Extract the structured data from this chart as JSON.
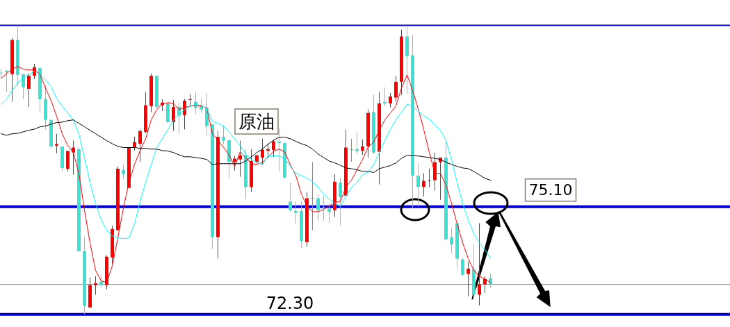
{
  "chart_data": {
    "type": "candlestick",
    "categories": [
      null,
      null,
      null,
      null,
      null,
      null,
      null,
      null,
      null,
      null,
      null,
      null,
      null,
      null,
      null,
      null,
      null,
      null,
      null,
      null,
      null,
      null,
      null,
      null,
      null,
      null,
      null,
      null,
      null,
      null,
      null,
      null,
      null,
      null,
      null,
      null,
      null,
      null,
      null,
      null,
      null,
      null,
      null,
      null,
      null,
      null,
      null,
      null,
      null,
      null,
      null,
      null,
      null,
      null,
      null,
      null,
      null,
      null,
      null,
      null,
      null,
      null,
      null,
      null,
      null,
      null,
      null,
      null,
      null,
      null,
      null,
      null,
      null,
      null,
      null,
      null,
      null,
      null,
      null,
      null,
      null,
      null,
      null,
      null,
      null,
      null,
      null,
      null,
      null
    ],
    "ylim": [
      71.97,
      80.48
    ],
    "ohlc": [
      [
        78.59,
        78.69,
        78.44,
        78.57
      ],
      [
        78.64,
        78.66,
        78.08,
        78.6
      ],
      [
        78.55,
        79.49,
        77.83,
        79.44
      ],
      [
        79.44,
        79.82,
        78.23,
        78.53
      ],
      [
        78.55,
        78.55,
        77.9,
        78.21
      ],
      [
        78.17,
        78.57,
        77.7,
        78.51
      ],
      [
        78.51,
        78.82,
        78.42,
        78.73
      ],
      [
        78.71,
        78.73,
        77.54,
        77.9
      ],
      [
        77.9,
        78.26,
        77.11,
        77.36
      ],
      [
        77.36,
        77.36,
        76.64,
        76.67
      ],
      [
        76.69,
        77.0,
        76.49,
        76.73
      ],
      [
        76.67,
        76.67,
        76.02,
        76.11
      ],
      [
        76.09,
        76.56,
        76.02,
        76.55
      ],
      [
        76.51,
        76.82,
        75.93,
        76.64
      ],
      [
        76.6,
        76.65,
        73.93,
        73.94
      ],
      [
        73.94,
        74.31,
        72.3,
        72.52
      ],
      [
        72.48,
        73.26,
        72.48,
        73.06
      ],
      [
        73.06,
        73.29,
        72.81,
        73.11
      ],
      [
        73.15,
        73.31,
        73.02,
        73.06
      ],
      [
        73.06,
        73.84,
        72.95,
        73.8
      ],
      [
        73.78,
        74.61,
        73.62,
        74.52
      ],
      [
        74.49,
        76.15,
        74.47,
        76.09
      ],
      [
        76.06,
        76.2,
        75.82,
        75.95
      ],
      [
        75.59,
        76.64,
        75.59,
        76.64
      ],
      [
        76.64,
        76.92,
        76.56,
        76.78
      ],
      [
        76.74,
        77.11,
        76.27,
        77.07
      ],
      [
        77.05,
        78.08,
        77.01,
        77.74
      ],
      [
        77.72,
        78.57,
        77.56,
        78.51
      ],
      [
        78.51,
        78.51,
        77.65,
        77.7
      ],
      [
        77.74,
        77.9,
        77.59,
        77.81
      ],
      [
        77.79,
        77.81,
        77.27,
        77.3
      ],
      [
        77.3,
        77.88,
        77.07,
        77.7
      ],
      [
        77.7,
        77.81,
        76.98,
        77.47
      ],
      [
        77.48,
        77.9,
        77.11,
        77.86
      ],
      [
        77.88,
        78.03,
        77.7,
        77.9
      ],
      [
        77.83,
        78.08,
        77.52,
        77.68
      ],
      [
        77.72,
        77.9,
        77.54,
        77.63
      ],
      [
        77.68,
        78.06,
        76.94,
        77.2
      ],
      [
        77.25,
        77.25,
        74.0,
        74.31
      ],
      [
        74.31,
        77.07,
        73.75,
        76.92
      ],
      [
        76.92,
        77.2,
        76.74,
        76.82
      ],
      [
        76.83,
        76.83,
        75.84,
        76.27
      ],
      [
        76.27,
        76.42,
        76.04,
        76.35
      ],
      [
        76.33,
        76.82,
        75.88,
        76.44
      ],
      [
        76.44,
        76.6,
        75.3,
        75.61
      ],
      [
        75.61,
        76.6,
        75.48,
        76.29
      ],
      [
        76.27,
        76.44,
        76.22,
        76.44
      ],
      [
        76.38,
        76.87,
        76.2,
        76.58
      ],
      [
        76.56,
        76.74,
        76.38,
        76.6
      ],
      [
        76.58,
        76.83,
        76.4,
        76.8
      ],
      [
        76.8,
        77.14,
        76.02,
        76.76
      ],
      [
        76.76,
        76.76,
        75.82,
        75.86
      ],
      [
        75.23,
        75.73,
        74.97,
        75.01
      ],
      [
        74.99,
        75.24,
        74.67,
        74.94
      ],
      [
        74.99,
        75.24,
        74.02,
        74.21
      ],
      [
        74.18,
        75.48,
        74.05,
        75.32
      ],
      [
        75.33,
        76.26,
        74.49,
        75.33
      ],
      [
        75.32,
        75.43,
        74.74,
        75.01
      ],
      [
        75.08,
        75.37,
        74.74,
        75.05
      ],
      [
        75.05,
        75.19,
        74.67,
        74.97
      ],
      [
        75.01,
        75.95,
        74.83,
        75.75
      ],
      [
        75.73,
        75.86,
        74.61,
        75.35
      ],
      [
        75.39,
        77.11,
        75.37,
        76.64
      ],
      [
        76.6,
        76.87,
        76.27,
        76.6
      ],
      [
        76.6,
        77.05,
        76.47,
        76.55
      ],
      [
        76.56,
        76.85,
        76.45,
        76.67
      ],
      [
        76.67,
        77.63,
        76.38,
        77.54
      ],
      [
        77.56,
        78.01,
        76.47,
        76.51
      ],
      [
        76.53,
        78.08,
        75.68,
        77.79
      ],
      [
        77.83,
        78.21,
        77.72,
        77.79
      ],
      [
        77.79,
        78.06,
        77.68,
        77.97
      ],
      [
        77.94,
        78.51,
        77.83,
        78.35
      ],
      [
        78.35,
        79.71,
        78.01,
        79.53
      ],
      [
        79.53,
        79.78,
        78.03,
        79.02
      ],
      [
        79.04,
        79.58,
        75.05,
        75.91
      ],
      [
        75.91,
        76.24,
        75.1,
        75.62
      ],
      [
        75.62,
        75.97,
        75.37,
        75.77
      ],
      [
        75.79,
        76.09,
        75.61,
        75.8
      ],
      [
        75.79,
        76.51,
        75.52,
        76.26
      ],
      [
        76.26,
        76.38,
        75.28,
        76.38
      ],
      [
        76.38,
        76.82,
        74.25,
        74.25
      ],
      [
        74.31,
        74.56,
        73.89,
        74.12
      ],
      [
        74.67,
        74.67,
        73.49,
        73.75
      ],
      [
        73.73,
        73.76,
        73.29,
        73.33
      ],
      [
        73.35,
        73.67,
        72.77,
        73.49
      ],
      [
        73.47,
        74.12,
        72.77,
        72.81
      ],
      [
        72.81,
        74.67,
        72.53,
        73.08
      ],
      [
        73.08,
        73.29,
        72.86,
        73.22
      ],
      [
        73.24,
        73.37,
        72.99,
        73.08
      ]
    ],
    "colors": [
      "#40e0d0",
      "#40e0d0",
      "#ff0000",
      "#40e0d0",
      "#40e0d0",
      "#ff0000",
      "#ff0000",
      "#40e0d0",
      "#40e0d0",
      "#40e0d0",
      "#ff0000",
      "#40e0d0",
      "#ff0000",
      "#ff0000",
      "#40e0d0",
      "#40e0d0",
      "#ff0000",
      "#ff0000",
      "#40e0d0",
      "#ff0000",
      "#ff0000",
      "#ff0000",
      "#40e0d0",
      "#ff0000",
      "#ff0000",
      "#ff0000",
      "#ff0000",
      "#ff0000",
      "#40e0d0",
      "#ff0000",
      "#40e0d0",
      "#ff0000",
      "#40e0d0",
      "#ff0000",
      "#ff0000",
      "#40e0d0",
      "#40e0d0",
      "#40e0d0",
      "#40e0d0",
      "#ff0000",
      "#40e0d0",
      "#40e0d0",
      "#ff0000",
      "#ff0000",
      "#40e0d0",
      "#ff0000",
      "#ff0000",
      "#ff0000",
      "#ff0000",
      "#ff0000",
      "#40e0d0",
      "#40e0d0",
      "#40e0d0",
      "#40e0d0",
      "#40e0d0",
      "#ff0000",
      "#32cd32",
      "#40e0d0",
      "#40e0d0",
      "#40e0d0",
      "#ff0000",
      "#40e0d0",
      "#ff0000",
      "#32cd32",
      "#40e0d0",
      "#ff0000",
      "#ff0000",
      "#40e0d0",
      "#ff0000",
      "#40e0d0",
      "#ff0000",
      "#ff0000",
      "#ff0000",
      "#40e0d0",
      "#40e0d0",
      "#40e0d0",
      "#ff0000",
      "#ff0000",
      "#ff0000",
      "#ff0000",
      "#40e0d0",
      "#40e0d0",
      "#40e0d0",
      "#40e0d0",
      "#ff0000",
      "#40e0d0",
      "#ff0000",
      "#ff0000",
      "#40e0d0"
    ],
    "series": [
      {
        "type": "line",
        "color": "#ff0000",
        "values": [
          78.44,
          78.57,
          78.68,
          78.75,
          78.68,
          78.66,
          78.66,
          78.55,
          78.19,
          77.86,
          77.45,
          77.0,
          76.69,
          76.51,
          75.97,
          75.01,
          74.16,
          73.44,
          73.17,
          73.13,
          73.56,
          74.29,
          75.06,
          75.73,
          76.2,
          76.56,
          76.87,
          77.36,
          77.63,
          77.77,
          77.81,
          77.79,
          77.63,
          77.68,
          77.72,
          77.74,
          77.72,
          77.67,
          77.0,
          76.83,
          76.65,
          76.45,
          76.15,
          76.53,
          76.38,
          76.22,
          76.2,
          76.26,
          76.38,
          76.55,
          76.6,
          76.53,
          76.2,
          75.91,
          75.43,
          75.12,
          74.97,
          74.97,
          75.03,
          75.12,
          75.21,
          75.24,
          75.61,
          75.79,
          76.06,
          76.33,
          76.65,
          76.78,
          77.09,
          77.36,
          77.54,
          77.72,
          78.19,
          78.53,
          78.13,
          77.65,
          77.11,
          76.51,
          75.97,
          75.97,
          75.66,
          75.19,
          74.65,
          74.16,
          73.75,
          73.44,
          73.29,
          73.22,
          73.13
        ]
      },
      {
        "type": "line",
        "color": "#00ffff",
        "values": [
          77.76,
          77.9,
          78.13,
          78.32,
          78.46,
          78.55,
          78.62,
          78.55,
          78.41,
          78.23,
          77.92,
          77.72,
          77.54,
          77.36,
          77.0,
          76.38,
          75.73,
          75.19,
          74.76,
          74.49,
          74.34,
          74.29,
          74.27,
          74.29,
          74.65,
          75.24,
          75.73,
          76.2,
          76.64,
          76.87,
          77.11,
          77.36,
          77.5,
          77.63,
          77.72,
          77.76,
          77.74,
          77.65,
          77.32,
          77.27,
          77.2,
          77.05,
          76.87,
          76.69,
          76.47,
          76.33,
          76.26,
          76.2,
          76.42,
          76.42,
          76.42,
          76.36,
          76.15,
          75.97,
          75.91,
          75.84,
          75.75,
          75.61,
          75.43,
          75.3,
          75.19,
          75.12,
          75.37,
          75.61,
          75.73,
          75.93,
          76.0,
          76.2,
          76.51,
          76.82,
          77.11,
          77.36,
          77.56,
          77.77,
          77.72,
          77.59,
          77.47,
          77.38,
          77.23,
          77.09,
          76.82,
          76.33,
          75.73,
          75.19,
          74.76,
          74.4,
          74.16,
          73.98,
          73.76
        ]
      },
      {
        "type": "line",
        "color": "#000000",
        "values": [
          77.0,
          76.96,
          77.0,
          77.01,
          77.05,
          77.09,
          77.12,
          77.18,
          77.2,
          77.25,
          77.29,
          77.3,
          77.34,
          77.36,
          77.27,
          77.18,
          77.09,
          77.0,
          76.91,
          76.82,
          76.74,
          76.67,
          76.64,
          76.64,
          76.64,
          76.62,
          76.62,
          76.6,
          76.6,
          76.56,
          76.55,
          76.51,
          76.45,
          76.4,
          76.4,
          76.38,
          76.36,
          76.33,
          76.2,
          76.22,
          76.22,
          76.22,
          76.22,
          76.22,
          76.29,
          76.4,
          76.51,
          76.6,
          76.73,
          76.83,
          76.91,
          76.91,
          76.87,
          76.8,
          76.74,
          76.69,
          76.6,
          76.47,
          76.38,
          76.29,
          76.24,
          76.18,
          76.11,
          76.09,
          76.06,
          76.02,
          76.02,
          75.99,
          76.09,
          76.13,
          76.17,
          76.24,
          76.36,
          76.44,
          76.44,
          76.42,
          76.4,
          76.38,
          76.36,
          76.33,
          76.26,
          76.2,
          76.15,
          76.11,
          76.09,
          76.02,
          75.93,
          75.84,
          75.79
        ]
      }
    ],
    "ref_lines": [
      {
        "axis": "y",
        "value": 79.82,
        "color": "#0000cc"
      },
      {
        "axis": "y",
        "value": 75.1,
        "label": "75.10",
        "color": "#0000cc"
      },
      {
        "axis": "y",
        "value": 73.08,
        "color": "#778899"
      },
      {
        "axis": "y",
        "value": 72.3,
        "label": "72.30",
        "color": "#0000cc"
      }
    ],
    "annotations": [
      "原油"
    ]
  }
}
